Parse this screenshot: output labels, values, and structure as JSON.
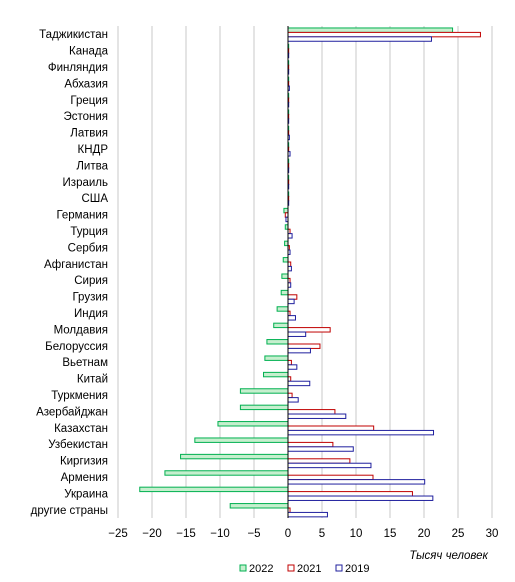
{
  "chart_data": {
    "type": "bar",
    "orientation": "horizontal",
    "categories": [
      "Таджикистан",
      "Канада",
      "Финляндия",
      "Абхазия",
      "Греция",
      "Эстония",
      "Латвия",
      "КНДР",
      "Литва",
      "Израиль",
      "США",
      "Германия",
      "Турция",
      "Сербия",
      "Афганистан",
      "Сирия",
      "Грузия",
      "Индия",
      "Молдавия",
      "Белоруссия",
      "Вьетнам",
      "Китай",
      "Туркмения",
      "Азербайджан",
      "Казахстан",
      "Узбекистан",
      "Киргизия",
      "Армения",
      "Украина",
      "другие страны"
    ],
    "series": [
      {
        "name": "2022",
        "color": "#00b050",
        "fill": "#c6efce",
        "values": [
          24.2,
          0.1,
          0.1,
          0.1,
          0.1,
          0.1,
          0.1,
          0.1,
          0.1,
          0.1,
          0.1,
          -0.6,
          -0.4,
          -0.5,
          -0.7,
          -0.9,
          -1.0,
          -1.6,
          -2.1,
          -3.1,
          -3.4,
          -3.6,
          -7.0,
          -7.0,
          -10.3,
          -13.7,
          -15.8,
          -18.1,
          -21.8,
          -8.5
        ]
      },
      {
        "name": "2021",
        "color": "#c00000",
        "fill": "#ffffff",
        "values": [
          28.3,
          0.1,
          0.1,
          0.1,
          0.1,
          0.1,
          0.1,
          0.1,
          0.1,
          0.1,
          0.1,
          -0.4,
          0.3,
          0.2,
          0.4,
          0.3,
          1.3,
          0.3,
          6.2,
          4.7,
          0.5,
          0.4,
          0.6,
          6.9,
          12.6,
          6.6,
          9.1,
          12.5,
          18.3,
          0.3
        ]
      },
      {
        "name": "2019",
        "color": "#1f1f9e",
        "fill": "#ffffff",
        "values": [
          21.1,
          0.1,
          0.1,
          0.2,
          0.1,
          0.1,
          0.2,
          0.3,
          0.1,
          0.1,
          0.1,
          -0.3,
          0.6,
          0.3,
          0.5,
          0.4,
          0.9,
          1.1,
          2.6,
          3.3,
          1.3,
          3.2,
          1.5,
          8.5,
          21.4,
          9.6,
          12.2,
          20.1,
          21.3,
          5.8
        ]
      }
    ],
    "xlim": [
      -25,
      30
    ],
    "xticks": [
      -25,
      -20,
      -15,
      -10,
      -5,
      0,
      5,
      10,
      15,
      20,
      25,
      30
    ],
    "xlabel": "Тысяч человек",
    "grid": "vertical",
    "legend_position": "bottom"
  }
}
